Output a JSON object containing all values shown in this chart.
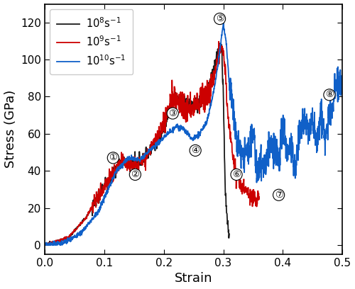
{
  "title": "",
  "xlabel": "Strain",
  "ylabel": "Stress (GPa)",
  "xlim": [
    0.0,
    0.5
  ],
  "ylim": [
    -5,
    130
  ],
  "yticks": [
    0,
    20,
    40,
    60,
    80,
    100,
    120
  ],
  "xticks": [
    0.0,
    0.1,
    0.2,
    0.3,
    0.4,
    0.5
  ],
  "legend_labels": [
    "$10^8$s$^{-1}$",
    "$10^9$s$^{-1}$",
    "$10^{10}$s$^{-1}$"
  ],
  "line_colors": [
    "#1a1a1a",
    "#cc0000",
    "#1060c8"
  ],
  "ann_positions": [
    [
      0.115,
      47,
      "①"
    ],
    [
      0.152,
      38,
      "②"
    ],
    [
      0.215,
      71,
      "③"
    ],
    [
      0.253,
      51,
      "④"
    ],
    [
      0.294,
      122,
      "⑤"
    ],
    [
      0.322,
      38,
      "⑥"
    ],
    [
      0.393,
      27,
      "⑦"
    ],
    [
      0.478,
      81,
      "⑧"
    ]
  ],
  "background_color": "#ffffff",
  "figsize": [
    5.0,
    4.08
  ],
  "dpi": 100
}
